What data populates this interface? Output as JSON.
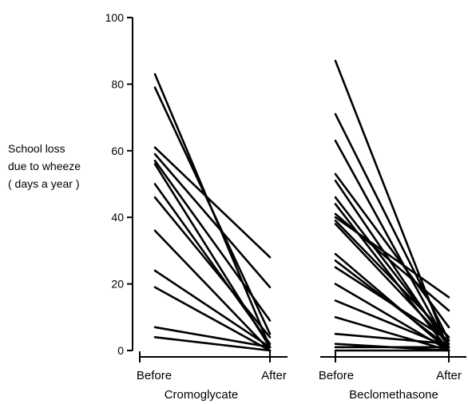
{
  "chart_data": {
    "type": "line",
    "title": "",
    "ylabel": [
      "School loss",
      "due to wheeze",
      "( days a year )"
    ],
    "xlabel": "",
    "ylim": [
      0,
      100
    ],
    "yticks": [
      "0",
      "20",
      "40",
      "60",
      "80",
      "100"
    ],
    "grid": false,
    "legend": "none",
    "line_color": "#000000",
    "groups": [
      {
        "name": "Cromoglycate",
        "x": [
          "Before",
          "After"
        ],
        "pairs": [
          [
            83,
            1
          ],
          [
            79,
            5
          ],
          [
            61,
            28
          ],
          [
            59,
            19
          ],
          [
            57,
            9
          ],
          [
            56,
            1
          ],
          [
            50,
            2
          ],
          [
            46,
            4
          ],
          [
            36,
            0
          ],
          [
            24,
            1
          ],
          [
            19,
            0
          ],
          [
            7,
            1
          ],
          [
            4,
            0
          ]
        ]
      },
      {
        "name": "Beclomethasone",
        "x": [
          "Before",
          "After"
        ],
        "pairs": [
          [
            87,
            0
          ],
          [
            71,
            3
          ],
          [
            63,
            1
          ],
          [
            53,
            7
          ],
          [
            51,
            1
          ],
          [
            46,
            2
          ],
          [
            44,
            0
          ],
          [
            41,
            12
          ],
          [
            40,
            16
          ],
          [
            39,
            4
          ],
          [
            38,
            2
          ],
          [
            29,
            0
          ],
          [
            27,
            1
          ],
          [
            25,
            3
          ],
          [
            20,
            0
          ],
          [
            15,
            1
          ],
          [
            10,
            0
          ],
          [
            5,
            2
          ],
          [
            2,
            0
          ],
          [
            1,
            1
          ],
          [
            0,
            0
          ]
        ]
      }
    ]
  }
}
